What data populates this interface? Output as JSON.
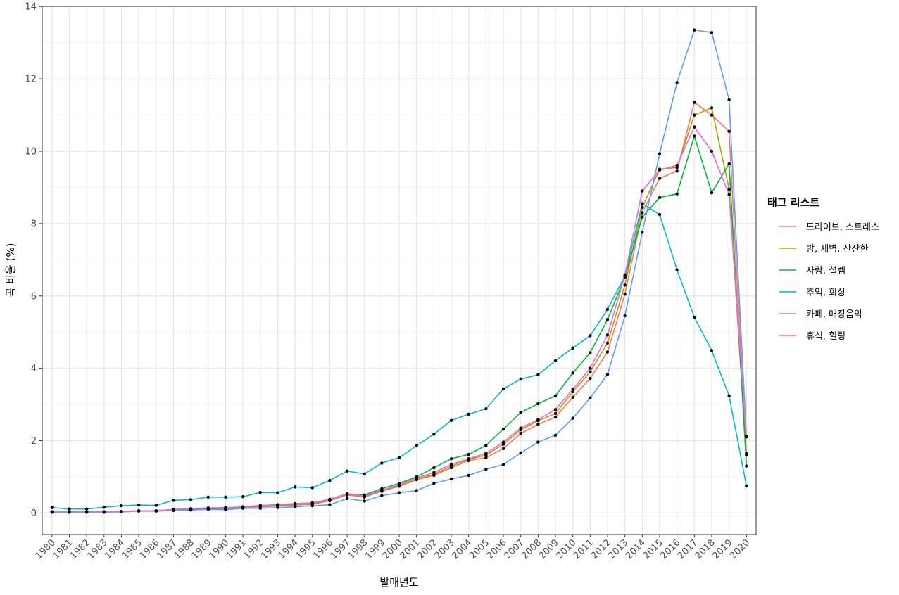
{
  "chart_data": {
    "type": "line",
    "title": "",
    "xlabel": "발매년도",
    "ylabel": "곡 비율 (%)",
    "ylim": [
      -0.6,
      14
    ],
    "yticks": [
      0,
      2,
      4,
      6,
      8,
      10,
      12,
      14
    ],
    "x": [
      1980,
      1981,
      1982,
      1983,
      1984,
      1985,
      1986,
      1987,
      1988,
      1989,
      1990,
      1991,
      1992,
      1993,
      1994,
      1995,
      1996,
      1997,
      1998,
      1999,
      2000,
      2001,
      2002,
      2003,
      2004,
      2005,
      2006,
      2007,
      2008,
      2009,
      2010,
      2011,
      2012,
      2013,
      2014,
      2015,
      2016,
      2017,
      2018,
      2019,
      2020
    ],
    "grid": true,
    "legend_position": "right",
    "legend_title": "태그 리스트",
    "series": [
      {
        "name": "드라이브, 스트레스",
        "color": "#F8766D",
        "values": [
          0.03,
          0.03,
          0.03,
          0.03,
          0.04,
          0.06,
          0.06,
          0.09,
          0.1,
          0.12,
          0.12,
          0.15,
          0.17,
          0.19,
          0.22,
          0.24,
          0.34,
          0.5,
          0.44,
          0.6,
          0.74,
          0.92,
          1.04,
          1.25,
          1.45,
          1.53,
          1.78,
          2.2,
          2.45,
          2.65,
          3.2,
          3.72,
          4.45,
          6.05,
          8.3,
          9.25,
          9.45,
          11.35,
          11.0,
          10.55,
          1.65
        ]
      },
      {
        "name": "밤, 새벽, 잔잔한",
        "color": "#B79F00",
        "values": [
          0.03,
          0.03,
          0.03,
          0.03,
          0.04,
          0.06,
          0.06,
          0.1,
          0.11,
          0.13,
          0.13,
          0.16,
          0.19,
          0.21,
          0.24,
          0.26,
          0.36,
          0.52,
          0.46,
          0.62,
          0.76,
          0.94,
          1.07,
          1.3,
          1.48,
          1.6,
          1.9,
          2.3,
          2.55,
          2.75,
          3.35,
          3.9,
          4.7,
          6.3,
          8.45,
          9.5,
          9.55,
          11.0,
          11.2,
          8.95,
          1.6
        ]
      },
      {
        "name": "사랑, 설렘",
        "color": "#00BA38",
        "values": [
          0.03,
          0.03,
          0.03,
          0.03,
          0.04,
          0.06,
          0.06,
          0.1,
          0.11,
          0.13,
          0.13,
          0.17,
          0.2,
          0.22,
          0.26,
          0.28,
          0.38,
          0.53,
          0.5,
          0.67,
          0.82,
          1.0,
          1.25,
          1.5,
          1.62,
          1.87,
          2.32,
          2.78,
          3.02,
          3.24,
          3.87,
          4.43,
          5.35,
          6.52,
          8.18,
          8.72,
          8.82,
          10.42,
          8.85,
          9.65,
          1.3
        ]
      },
      {
        "name": "추억, 회상",
        "color": "#00BFC4",
        "values": [
          0.15,
          0.11,
          0.11,
          0.16,
          0.2,
          0.22,
          0.21,
          0.35,
          0.37,
          0.44,
          0.44,
          0.45,
          0.57,
          0.56,
          0.72,
          0.7,
          0.9,
          1.16,
          1.08,
          1.38,
          1.53,
          1.86,
          2.18,
          2.56,
          2.73,
          2.88,
          3.43,
          3.7,
          3.82,
          4.21,
          4.56,
          4.9,
          5.63,
          6.55,
          8.55,
          8.25,
          6.72,
          5.41,
          4.49,
          3.24,
          0.75
        ]
      },
      {
        "name": "카페, 매장음악",
        "color": "#619CFF",
        "values": [
          0.02,
          0.02,
          0.02,
          0.02,
          0.03,
          0.05,
          0.05,
          0.07,
          0.08,
          0.1,
          0.09,
          0.13,
          0.13,
          0.15,
          0.17,
          0.2,
          0.23,
          0.4,
          0.33,
          0.48,
          0.56,
          0.62,
          0.82,
          0.94,
          1.04,
          1.21,
          1.34,
          1.66,
          1.96,
          2.15,
          2.62,
          3.18,
          3.83,
          5.45,
          7.76,
          9.93,
          11.9,
          13.35,
          13.28,
          11.42,
          2.1
        ]
      },
      {
        "name": "휴식, 힐링",
        "color": "#F564E3",
        "values": [
          0.03,
          0.03,
          0.03,
          0.03,
          0.04,
          0.06,
          0.06,
          0.1,
          0.12,
          0.14,
          0.15,
          0.17,
          0.21,
          0.23,
          0.26,
          0.28,
          0.37,
          0.53,
          0.47,
          0.63,
          0.78,
          0.97,
          1.12,
          1.35,
          1.5,
          1.65,
          1.96,
          2.35,
          2.58,
          2.86,
          3.42,
          4.0,
          4.92,
          6.58,
          8.9,
          9.48,
          9.61,
          10.67,
          10.0,
          8.8,
          2.12
        ]
      }
    ]
  }
}
